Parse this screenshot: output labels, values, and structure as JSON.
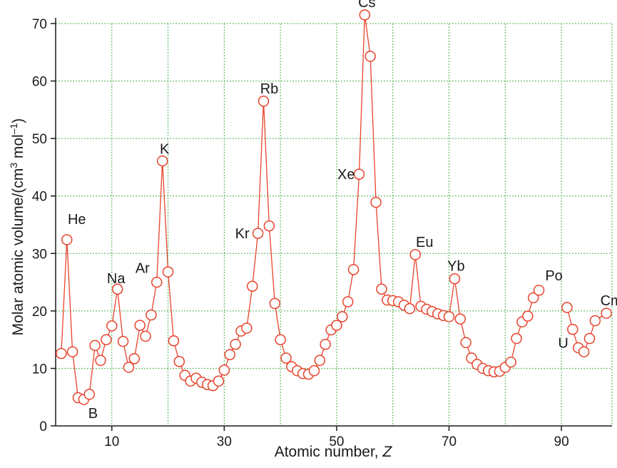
{
  "chart_data": {
    "type": "scatter",
    "title": "",
    "xlabel": "Atomic number, ",
    "xlabel_var": "Z",
    "ylabel": "Molar atomic volume/(cm",
    "ylabel_sup3": "3",
    "ylabel_mid": " mol",
    "ylabel_supneg": "–1",
    "ylabel_end": ")",
    "xlim": [
      0,
      99
    ],
    "ylim": [
      0,
      70
    ],
    "x_ticks": [
      10,
      30,
      50,
      70,
      90
    ],
    "y_ticks": [
      0,
      10,
      20,
      30,
      40,
      50,
      60,
      70
    ],
    "x_grid": [
      10,
      20,
      30,
      40,
      50,
      60,
      70,
      80,
      90
    ],
    "grid": true,
    "line_color": "#e8432c",
    "grid_color": "#4caf50",
    "series": [
      {
        "points": [
          [
            1,
            12.6
          ],
          [
            2,
            32.4
          ],
          [
            3,
            12.9
          ],
          [
            4,
            4.9
          ],
          [
            5,
            4.6
          ],
          [
            6,
            5.5
          ],
          [
            7,
            14
          ],
          [
            8,
            11.4
          ],
          [
            9,
            15
          ],
          [
            10,
            17.4
          ],
          [
            11,
            23.8
          ],
          [
            12,
            14.7
          ],
          [
            13,
            10.2
          ],
          [
            14,
            11.7
          ],
          [
            15,
            17.5
          ],
          [
            16,
            15.6
          ],
          [
            17,
            19.3
          ],
          [
            18,
            25
          ],
          [
            19,
            46.1
          ],
          [
            20,
            26.8
          ],
          [
            21,
            14.8
          ],
          [
            22,
            11.2
          ],
          [
            23,
            8.8
          ],
          [
            24,
            7.8
          ],
          [
            25,
            8.3
          ],
          [
            26,
            7.6
          ],
          [
            27,
            7.2
          ],
          [
            28,
            7
          ],
          [
            29,
            7.8
          ],
          [
            30,
            9.7
          ],
          [
            31,
            12.4
          ],
          [
            32,
            14.2
          ],
          [
            33,
            16.5
          ],
          [
            34,
            17
          ],
          [
            35,
            24.3
          ],
          [
            36,
            33.5
          ],
          [
            37,
            56.5
          ],
          [
            38,
            34.8
          ],
          [
            39,
            21.3
          ],
          [
            40,
            15
          ],
          [
            41,
            11.8
          ],
          [
            42,
            10.3
          ],
          [
            43,
            9.6
          ],
          [
            44,
            9.1
          ],
          [
            45,
            9
          ],
          [
            46,
            9.6
          ],
          [
            47,
            11.4
          ],
          [
            48,
            14.2
          ],
          [
            49,
            16.7
          ],
          [
            50,
            17.5
          ],
          [
            51,
            19
          ],
          [
            52,
            21.6
          ],
          [
            53,
            27.2
          ],
          [
            54,
            43.8
          ],
          [
            55,
            71.5
          ],
          [
            56,
            64.3
          ],
          [
            57,
            38.9
          ],
          [
            58,
            23.8
          ],
          [
            59,
            21.9
          ],
          [
            60,
            21.8
          ],
          [
            61,
            21.6
          ],
          [
            62,
            21
          ],
          [
            63,
            20.4
          ],
          [
            64,
            29.8
          ],
          [
            65,
            20.8
          ],
          [
            66,
            20.3
          ],
          [
            67,
            19.9
          ],
          [
            68,
            19.5
          ],
          [
            69,
            19.2
          ],
          [
            70,
            19
          ],
          [
            71,
            25.6
          ],
          [
            72,
            18.6
          ],
          [
            73,
            14.5
          ],
          [
            74,
            11.8
          ],
          [
            75,
            10.7
          ],
          [
            76,
            10
          ],
          [
            77,
            9.6
          ],
          [
            78,
            9.4
          ],
          [
            79,
            9.5
          ],
          [
            80,
            10.2
          ],
          [
            81,
            11.1
          ],
          [
            82,
            15.2
          ],
          [
            83,
            18.1
          ],
          [
            84,
            19.1
          ],
          [
            85,
            22.3
          ],
          [
            86,
            23.6
          ]
        ]
      },
      {
        "points": [
          [
            91,
            20.6
          ],
          [
            92,
            16.8
          ],
          [
            93,
            13.6
          ],
          [
            94,
            12.9
          ],
          [
            95,
            15.2
          ],
          [
            96,
            18.3
          ],
          [
            98,
            19.6
          ]
        ]
      }
    ],
    "annotations": [
      {
        "text": "He",
        "x": 2,
        "y": 32.4
      },
      {
        "text": "B",
        "x": 5,
        "y": 4.6
      },
      {
        "text": "Na",
        "x": 11,
        "y": 23.8
      },
      {
        "text": "Ar",
        "x": 18,
        "y": 25
      },
      {
        "text": "K",
        "x": 19,
        "y": 46.1
      },
      {
        "text": "Kr",
        "x": 36,
        "y": 33.5
      },
      {
        "text": "Rb",
        "x": 37,
        "y": 56.5
      },
      {
        "text": "Xe",
        "x": 54,
        "y": 43.8
      },
      {
        "text": "Cs",
        "x": 55,
        "y": 71.5
      },
      {
        "text": "Eu",
        "x": 64,
        "y": 29.8
      },
      {
        "text": "Yb",
        "x": 71,
        "y": 25.6
      },
      {
        "text": "Po",
        "x": 86,
        "y": 23.6
      },
      {
        "text": "U",
        "x": 92,
        "y": 16.8
      },
      {
        "text": "Cm",
        "x": 98,
        "y": 19.6
      }
    ]
  }
}
